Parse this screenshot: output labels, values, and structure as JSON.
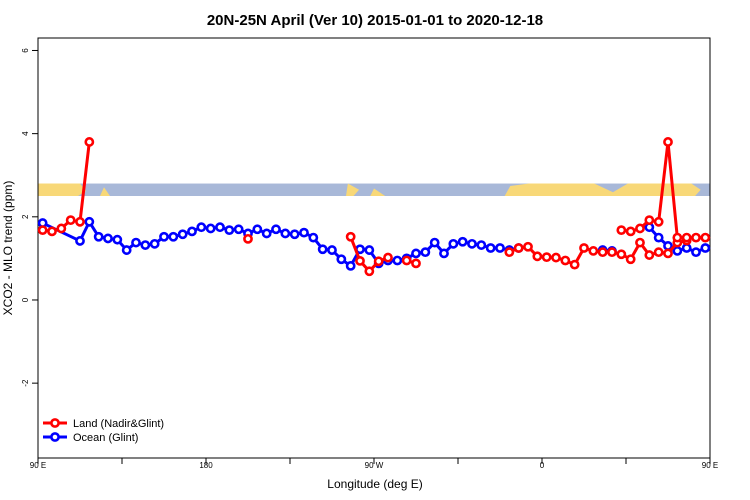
{
  "chart_data": {
    "type": "line",
    "title": "20N-25N April (Ver 10)   2015-01-01 to 2020-12-18",
    "xlabel": "Longitude (deg E)",
    "ylabel": "XCO2 - MLO trend (ppm)",
    "xlim": [
      90,
      450
    ],
    "ylim": [
      -3.8,
      6.3
    ],
    "x_ticks": [
      {
        "value": 90,
        "label": "90 E"
      },
      {
        "value": 180,
        "label": "180"
      },
      {
        "value": 270,
        "label": "90 W"
      },
      {
        "value": 360,
        "label": "0"
      },
      {
        "value": 450,
        "label": "90 E"
      }
    ],
    "extra_x_ticks": [
      135,
      225,
      315,
      405
    ],
    "y_ticks": [
      {
        "value": -2,
        "label": "-2"
      },
      {
        "value": 0,
        "label": "0"
      },
      {
        "value": 2,
        "label": "2"
      },
      {
        "value": 4,
        "label": "4"
      },
      {
        "value": 6,
        "label": "6"
      }
    ],
    "land_band": {
      "y_min": 2.5,
      "y_max": 2.8,
      "ocean_color": "#a8b8d8",
      "land_color": "#f8d878"
    },
    "legend_position": "bottom-left",
    "series": [
      {
        "name": "Land (Nadir&Glint)",
        "color": "#ff0000",
        "segments": [
          {
            "x": [
              92.5,
              97.5,
              102.5,
              107.5,
              112.5,
              117.5
            ],
            "y": [
              1.68,
              1.65,
              1.72,
              1.92,
              1.88,
              3.8
            ]
          },
          {
            "x": [
              202.5
            ],
            "y": [
              1.47
            ]
          },
          {
            "x": [
              257.5,
              262.5,
              267.5,
              272.5,
              277.5
            ],
            "y": [
              1.52,
              0.94,
              0.69,
              0.93,
              1.02
            ]
          },
          {
            "x": [
              287.5,
              292.5
            ],
            "y": [
              0.95,
              0.88
            ]
          },
          {
            "x": [
              342.5,
              347.5,
              352.5,
              357.5,
              362.5,
              367.5,
              372.5,
              377.5,
              382.5,
              387.5,
              392.5,
              397.5,
              402.5,
              407.5,
              412.5,
              417.5,
              422.5,
              427.5,
              432.5,
              437.5
            ],
            "y": [
              1.15,
              1.25,
              1.28,
              1.05,
              1.03,
              1.02,
              0.95,
              0.85,
              1.25,
              1.18,
              1.15,
              1.15,
              1.1,
              0.98,
              1.38,
              1.08,
              1.15,
              1.12,
              1.38,
              1.43
            ]
          },
          {
            "x": [
              402.5,
              407.5,
              412.5,
              417.5,
              422.5,
              427.5,
              432.5,
              437.5,
              442.5,
              447.5
            ],
            "y": [
              1.68,
              1.65,
              1.72,
              1.92,
              1.88,
              3.8,
              1.5,
              1.5,
              1.5,
              1.5
            ]
          }
        ]
      },
      {
        "name": "Ocean (Glint)",
        "color": "#0000ff",
        "segments": [
          {
            "x": [
              92.5,
              112.5,
              117.5,
              122.5,
              127.5,
              132.5,
              137.5,
              142.5,
              147.5,
              152.5,
              157.5,
              162.5,
              167.5,
              172.5,
              177.5,
              182.5,
              187.5,
              192.5,
              197.5,
              202.5,
              207.5,
              212.5,
              217.5,
              222.5,
              227.5,
              232.5,
              237.5,
              242.5,
              247.5,
              252.5,
              257.5,
              262.5,
              267.5,
              272.5,
              277.5,
              282.5,
              287.5,
              292.5,
              297.5,
              302.5,
              307.5,
              312.5,
              317.5,
              322.5,
              327.5,
              332.5,
              337.5,
              342.5,
              347.5
            ],
            "y": [
              1.85,
              1.42,
              1.88,
              1.52,
              1.48,
              1.45,
              1.2,
              1.38,
              1.32,
              1.35,
              1.52,
              1.52,
              1.58,
              1.65,
              1.75,
              1.72,
              1.75,
              1.68,
              1.7,
              1.6,
              1.7,
              1.6,
              1.7,
              1.6,
              1.58,
              1.62,
              1.5,
              1.22,
              1.2,
              0.98,
              0.82,
              1.22,
              1.2,
              0.88,
              0.95,
              0.95,
              1.0,
              1.12,
              1.15,
              1.38,
              1.12,
              1.35,
              1.4,
              1.35,
              1.32,
              1.25,
              1.25,
              1.2,
              1.25
            ]
          },
          {
            "x": [
              392.5,
              397.5
            ],
            "y": [
              1.2,
              1.18
            ]
          },
          {
            "x": [
              417.5,
              422.5,
              427.5,
              432.5,
              437.5,
              442.5,
              447.5
            ],
            "y": [
              1.75,
              1.5,
              1.3,
              1.18,
              1.25,
              1.15,
              1.25
            ]
          }
        ]
      }
    ]
  }
}
